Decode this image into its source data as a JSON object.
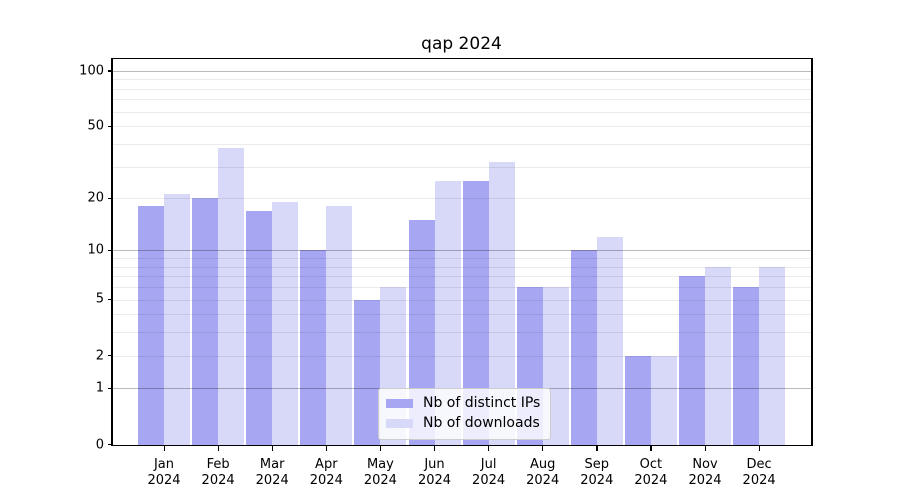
{
  "chart_data": {
    "type": "bar",
    "title": "qap 2024",
    "months": [
      "Jan",
      "Feb",
      "Mar",
      "Apr",
      "May",
      "Jun",
      "Jul",
      "Aug",
      "Sep",
      "Oct",
      "Nov",
      "Dec"
    ],
    "year_label": "2024",
    "series": [
      {
        "name": "Nb of distinct IPs",
        "color": "#a6a6f2",
        "values": [
          18,
          20,
          17,
          10,
          5,
          15,
          25,
          6,
          10,
          2,
          7,
          6
        ]
      },
      {
        "name": "Nb of downloads",
        "color": "#d8d8f8",
        "values": [
          21,
          38,
          19,
          18,
          6,
          25,
          32,
          6,
          12,
          2,
          8,
          8
        ]
      }
    ],
    "yscale": "log1p",
    "yticks": [
      0,
      1,
      2,
      5,
      10,
      20,
      50,
      100
    ],
    "major_gridlines": [
      1,
      10,
      100
    ],
    "ylim": [
      0,
      116
    ],
    "grid": true,
    "legend_position": "lower center"
  }
}
